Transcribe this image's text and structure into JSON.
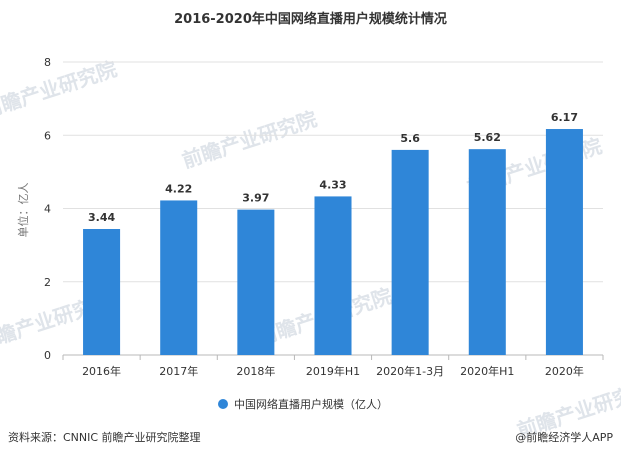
{
  "chart_data": {
    "type": "bar",
    "title": "2016-2020年中国网络直播用户规模统计情况",
    "xlabel": "",
    "ylabel": "单位：亿人",
    "categories": [
      "2016年",
      "2017年",
      "2018年",
      "2019年H1",
      "2020年1-3月",
      "2020年H1",
      "2020年"
    ],
    "series": [
      {
        "name": "中国网络直播用户规模（亿人）",
        "values": [
          3.44,
          4.22,
          3.97,
          4.33,
          5.6,
          5.62,
          6.17
        ]
      }
    ],
    "ylim": [
      0,
      8
    ],
    "yticks": [
      0,
      2,
      4,
      6,
      8
    ],
    "grid": true,
    "legend": "bottom-center",
    "colors": {
      "bar": "#2f86d8",
      "grid": "#e1e1e1",
      "axis": "#b8b8b8"
    }
  },
  "watermark": {
    "text": "前瞻产业研究院"
  },
  "footer": {
    "source": "资料来源：CNNIC 前瞻产业研究院整理",
    "brand": "@前瞻经济学人APP"
  }
}
